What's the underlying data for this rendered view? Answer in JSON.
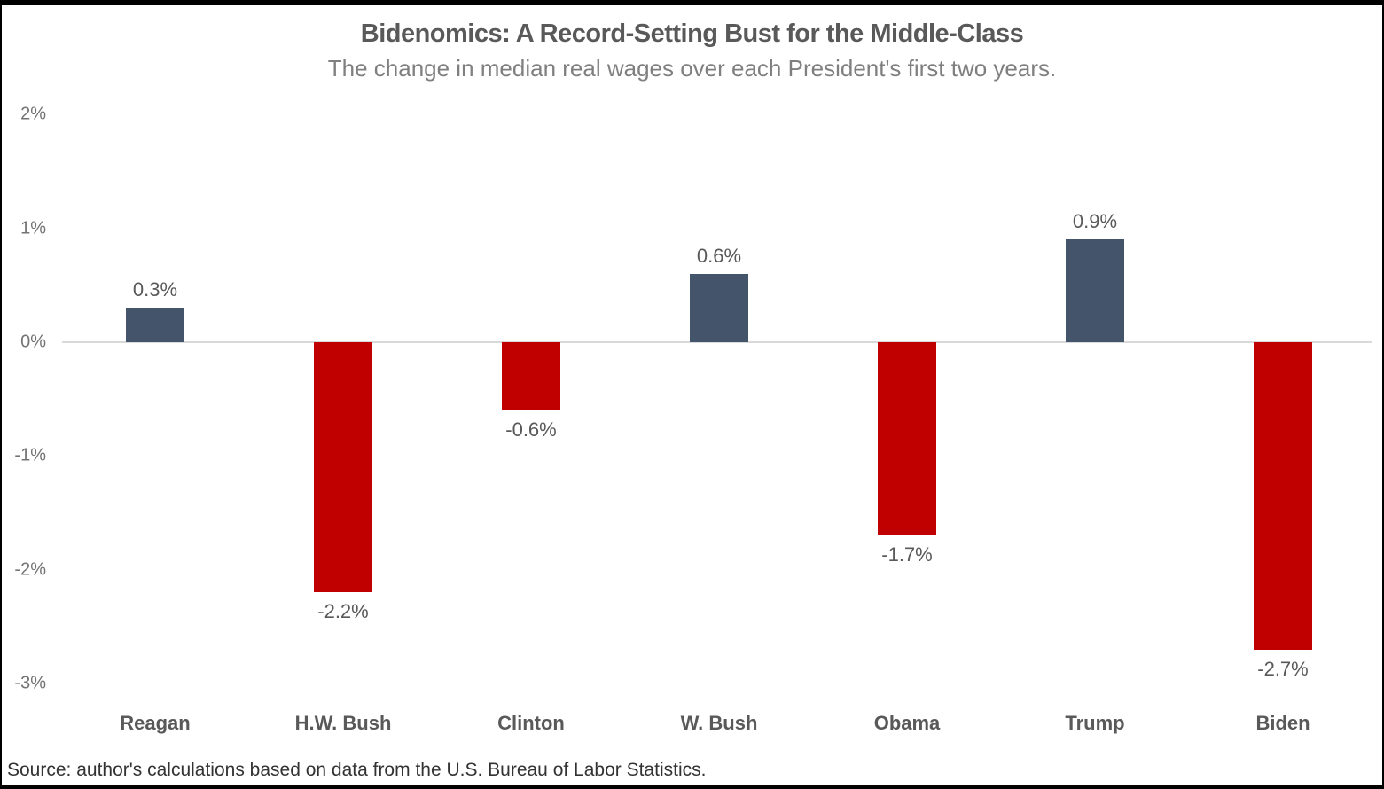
{
  "header": {
    "title": "Bidenomics: A Record-Setting Bust for the Middle-Class",
    "subtitle": "The change in median real wages over each President's first two years."
  },
  "footer": {
    "source": "Source: author's calculations based on data from the U.S. Bureau of Labor Statistics."
  },
  "chart_data": {
    "type": "bar",
    "title": "Bidenomics: A Record-Setting Bust for the Middle-Class",
    "subtitle": "The change in median real wages over each President's first two years.",
    "categories": [
      "Reagan",
      "H.W. Bush",
      "Clinton",
      "W. Bush",
      "Obama",
      "Trump",
      "Biden"
    ],
    "values": [
      0.3,
      -2.2,
      -0.6,
      0.6,
      -1.7,
      0.9,
      -2.7
    ],
    "data_labels": [
      "0.3%",
      "-2.2%",
      "-0.6%",
      "0.6%",
      "-1.7%",
      "0.9%",
      "-2.7%"
    ],
    "xlabel": "",
    "ylabel": "",
    "ylim": [
      -3,
      2
    ],
    "y_ticks": [
      {
        "label": "2%",
        "value": 2
      },
      {
        "label": "1%",
        "value": 1
      },
      {
        "label": "0%",
        "value": 0
      },
      {
        "label": "-1%",
        "value": -1
      },
      {
        "label": "-2%",
        "value": -2
      },
      {
        "label": "-3%",
        "value": -3
      }
    ],
    "grid": false,
    "legend": false,
    "colors": {
      "positive_bar": "#44546A",
      "negative_bar": "#C00000",
      "axis_line": "#D9D9D9",
      "title_text": "#595959",
      "subtitle_text": "#7F7F7F",
      "tick_text": "#737373",
      "category_text": "#595959",
      "value_label_text": "#595959"
    },
    "source": "Source: author's calculations based on data from the U.S. Bureau of Labor Statistics."
  }
}
